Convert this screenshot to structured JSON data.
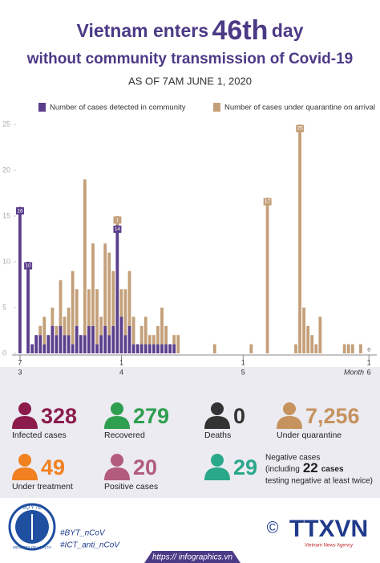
{
  "chart_data": {
    "type": "bar",
    "title_prefix": "Vietnam enters",
    "title_number": "46th",
    "title_suffix": "day",
    "title_line2": "without community transmission of Covid-19",
    "subtitle": "AS OF 7AM JUNE 1, 2020",
    "x_label": "Month",
    "stacked": true,
    "categories": [
      [
        "7",
        "3"
      ],
      null,
      null,
      null,
      null,
      null,
      null,
      null,
      null,
      null,
      null,
      null,
      null,
      null,
      null,
      null,
      null,
      null,
      null,
      null,
      null,
      null,
      null,
      null,
      null,
      [
        "1",
        "4"
      ],
      null,
      null,
      null,
      null,
      null,
      null,
      null,
      null,
      null,
      null,
      null,
      null,
      null,
      null,
      null,
      null,
      null,
      null,
      null,
      null,
      null,
      null,
      null,
      null,
      null,
      null,
      null,
      null,
      null,
      [
        "1",
        "5"
      ],
      null,
      null,
      null,
      null,
      null,
      null,
      null,
      null,
      null,
      null,
      null,
      null,
      null,
      null,
      null,
      null,
      null,
      null,
      null,
      null,
      null,
      null,
      null,
      null,
      null,
      null,
      null,
      null,
      null,
      null,
      [
        "1",
        "6"
      ]
    ],
    "series": [
      {
        "name": "Number of cases detected in community",
        "color": "#5b3f8c",
        "values": [
          16,
          0,
          10,
          1,
          2,
          2,
          1,
          2,
          3,
          2,
          3,
          2,
          2,
          1,
          3,
          2,
          2,
          3,
          3,
          1,
          2,
          3,
          2,
          3,
          14,
          4,
          2,
          3,
          1,
          1,
          1,
          1,
          1,
          1,
          1,
          1,
          1,
          1,
          1,
          0,
          0,
          0,
          0,
          0,
          0,
          0,
          0,
          0,
          0,
          0,
          0,
          0,
          0,
          0,
          0,
          0,
          0,
          0,
          0,
          0,
          0,
          0,
          0,
          0,
          0,
          0,
          0,
          0,
          0,
          0,
          0,
          0,
          0,
          0,
          0,
          0,
          0,
          0,
          0,
          0,
          0,
          0,
          0,
          0,
          0,
          0,
          0
        ],
        "value_labels": [
          "16",
          null,
          "10",
          null,
          null,
          null,
          null,
          null,
          null,
          null,
          null,
          null,
          null,
          null,
          null,
          null,
          null,
          null,
          null,
          null,
          null,
          null,
          null,
          null,
          "14",
          null,
          null,
          null,
          null,
          null,
          null,
          null,
          null,
          null,
          null,
          null,
          null,
          null,
          null,
          null,
          null,
          null,
          null,
          null,
          null,
          null,
          null,
          null,
          null,
          null,
          null,
          null,
          null,
          null,
          null,
          null,
          null,
          null,
          null,
          null,
          null,
          null,
          null,
          null,
          null,
          null,
          null,
          null,
          null,
          null,
          null,
          null,
          null,
          null,
          null,
          null,
          null,
          null,
          null,
          null,
          null,
          null,
          null,
          null,
          null,
          null,
          null
        ]
      },
      {
        "name": "Number of cases under quarantine on arrival",
        "color": "#c4a07a",
        "values": [
          0,
          0,
          0,
          0,
          0,
          1,
          3,
          0,
          2,
          1,
          5,
          2,
          3,
          8,
          4,
          0,
          17,
          4,
          9,
          6,
          2,
          9,
          9,
          6,
          1,
          3,
          5,
          6,
          3,
          0,
          2,
          3,
          1,
          1,
          2,
          4,
          2,
          0,
          1,
          2,
          0,
          0,
          0,
          0,
          0,
          0,
          0,
          0,
          1,
          0,
          0,
          0,
          0,
          0,
          0,
          0,
          0,
          1,
          0,
          0,
          0,
          17,
          0,
          0,
          0,
          0,
          0,
          0,
          1,
          25,
          5,
          3,
          2,
          1,
          4,
          0,
          0,
          0,
          0,
          0,
          1,
          1,
          1,
          0,
          1,
          0,
          0
        ],
        "value_labels": [
          null,
          null,
          null,
          null,
          null,
          null,
          null,
          null,
          null,
          null,
          null,
          null,
          null,
          null,
          null,
          null,
          null,
          null,
          null,
          null,
          null,
          null,
          null,
          null,
          "1",
          null,
          null,
          null,
          null,
          null,
          null,
          null,
          null,
          null,
          null,
          null,
          null,
          null,
          null,
          null,
          null,
          null,
          null,
          null,
          null,
          null,
          null,
          null,
          null,
          null,
          null,
          null,
          null,
          null,
          null,
          null,
          null,
          null,
          null,
          null,
          null,
          "17",
          null,
          null,
          null,
          null,
          null,
          null,
          null,
          "25",
          null,
          null,
          null,
          null,
          null,
          null,
          null,
          null,
          null,
          null,
          null,
          null,
          null,
          null,
          null,
          null,
          "0"
        ]
      }
    ],
    "ylim": [
      0,
      25
    ],
    "yticks": [
      0,
      5,
      10,
      15,
      20,
      25
    ]
  },
  "stats": [
    {
      "value": "328",
      "label": "Infected cases",
      "color": "#8c1c4c"
    },
    {
      "value": "279",
      "label": "Recovered",
      "color": "#2e9e4f"
    },
    {
      "value": "0",
      "label": "Deaths",
      "color": "#333333"
    },
    {
      "value": "7,256",
      "label": "Under quarantine",
      "color": "#c6925e"
    },
    {
      "value": "49",
      "label": "Under treatment",
      "color": "#f08020"
    },
    {
      "value": "20",
      "label": "Positive cases",
      "color": "#b35c7d"
    },
    {
      "value": "29",
      "label": "Negative cases",
      "color": "#2aa88a"
    }
  ],
  "negative_note": {
    "pre": "(including",
    "number": "22",
    "post": "cases",
    "line3": "testing negative at least twice)"
  },
  "footer": {
    "ministry_vn": "BỘ Y TẾ",
    "ministry_en": "MINISTRY OF HEALTH",
    "tag1": "#BYT_nCoV",
    "tag2": "#ICT_anti_nCoV",
    "copyright": "©",
    "agency": "TTXVN",
    "agency_en": "Vietnam News Agency",
    "url": "https:// infographics.vn"
  }
}
